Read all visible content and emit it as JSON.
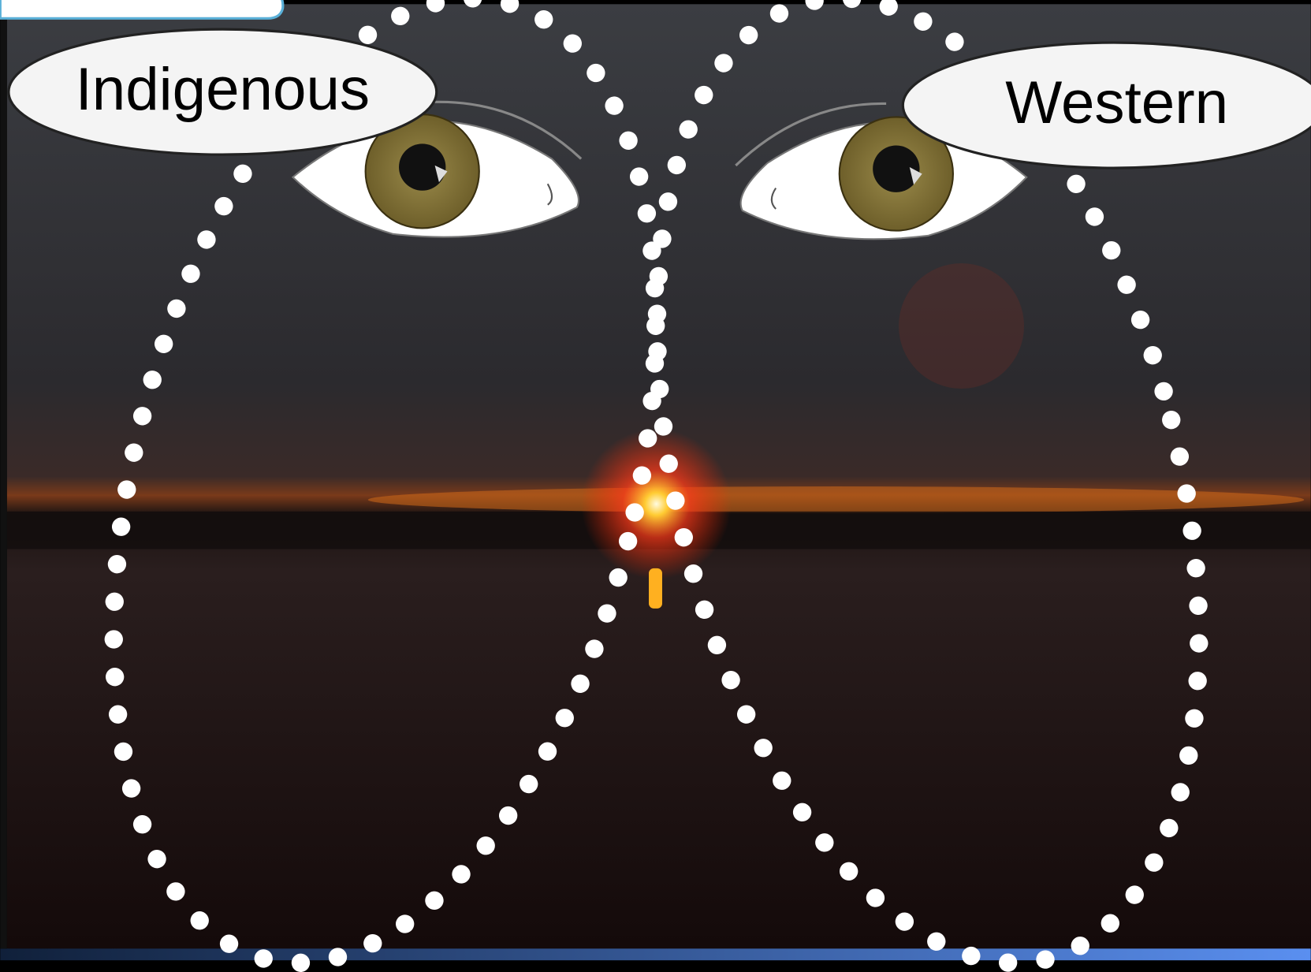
{
  "labels": {
    "left": "Indigenous",
    "right": "Western"
  }
}
